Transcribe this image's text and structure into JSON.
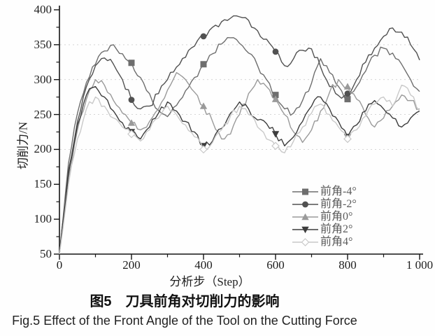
{
  "figure": {
    "caption_zh": "图5　刀具前角对切削力的影响",
    "caption_en": "Fig.5  Effect of the Front Angle of the Tool on the Cutting Force"
  },
  "chart_data": {
    "type": "line",
    "title": "",
    "xlabel": "分析步（Step）",
    "ylabel": "切削力/N",
    "xlim": [
      0,
      1000
    ],
    "ylim": [
      50,
      400
    ],
    "xticks": [
      0,
      200,
      400,
      600,
      800,
      1000
    ],
    "xtick_labels": [
      "0",
      "200",
      "400",
      "600",
      "800",
      "1 000"
    ],
    "yticks": [
      50,
      100,
      150,
      200,
      250,
      300,
      350,
      400
    ],
    "ytick_labels": [
      "50",
      "100",
      "150",
      "200",
      "250",
      "300",
      "350",
      "400"
    ],
    "grid": "faint dotted horizontal gridlines at 200, 250, 300, 350",
    "legend_position": "inside lower right",
    "x_start": 0,
    "x_step": 25,
    "marker_x": [
      200,
      400,
      600,
      800
    ],
    "series": [
      {
        "name": "前角-4°",
        "marker": "square",
        "color": "#6e6e6e",
        "values": [
          50,
          180,
          252,
          296,
          322,
          341,
          350,
          337,
          324,
          303,
          280,
          256,
          247,
          263,
          284,
          303,
          322,
          337,
          351,
          360,
          352,
          338,
          320,
          300,
          278,
          258,
          252,
          270,
          295,
          330,
          310,
          290,
          272,
          290,
          312,
          335,
          345,
          338,
          322,
          300,
          283
        ]
      },
      {
        "name": "前角-2°",
        "marker": "circle",
        "color": "#515151",
        "values": [
          50,
          170,
          240,
          290,
          320,
          331,
          322,
          300,
          271,
          258,
          262,
          280,
          300,
          318,
          332,
          348,
          362,
          375,
          383,
          388,
          390,
          385,
          370,
          358,
          340,
          320,
          330,
          342,
          344,
          318,
          290,
          277,
          280,
          300,
          325,
          345,
          362,
          374,
          368,
          350,
          328
        ]
      },
      {
        "name": "前角0°",
        "marker": "triangle-up",
        "color": "#9a9a9a",
        "values": [
          50,
          160,
          228,
          272,
          300,
          292,
          270,
          252,
          238,
          228,
          240,
          258,
          285,
          310,
          300,
          282,
          262,
          240,
          215,
          222,
          250,
          280,
          300,
          290,
          272,
          250,
          225,
          210,
          228,
          255,
          282,
          300,
          290,
          272,
          250,
          232,
          245,
          262,
          278,
          270,
          258
        ]
      },
      {
        "name": "前角2°",
        "marker": "triangle-down",
        "color": "#3d3d3d",
        "values": [
          50,
          165,
          235,
          278,
          290,
          275,
          255,
          238,
          225,
          215,
          232,
          252,
          268,
          255,
          240,
          225,
          205,
          212,
          230,
          252,
          268,
          258,
          242,
          237,
          222,
          205,
          218,
          240,
          262,
          275,
          258,
          240,
          218,
          235,
          255,
          270,
          258,
          245,
          232,
          245,
          255
        ]
      },
      {
        "name": "前角4°",
        "marker": "diamond-open",
        "color": "#c9c9c9",
        "values": [
          50,
          150,
          215,
          258,
          275,
          262,
          245,
          232,
          222,
          212,
          228,
          245,
          262,
          250,
          235,
          218,
          200,
          210,
          228,
          248,
          262,
          250,
          232,
          215,
          205,
          195,
          212,
          232,
          252,
          265,
          250,
          232,
          215,
          228,
          248,
          265,
          275,
          262,
          292,
          278,
          255
        ]
      }
    ]
  }
}
